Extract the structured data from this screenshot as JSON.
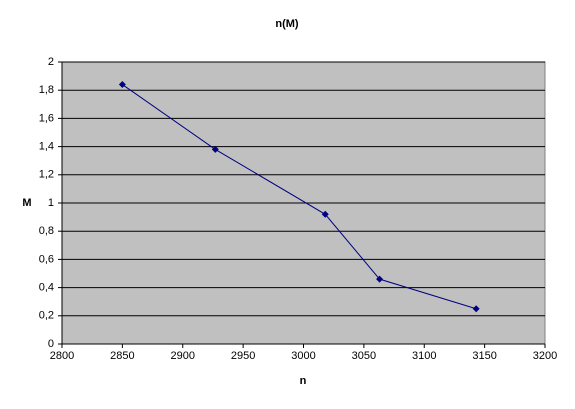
{
  "chart_data": {
    "type": "line",
    "title": "n(M)",
    "x_label": "n",
    "y_label": "M",
    "x": [
      2850,
      2927,
      3018,
      3063,
      3143
    ],
    "series": [
      {
        "color": "#000080",
        "values": [
          1.84,
          1.38,
          0.92,
          0.46,
          0.25
        ]
      }
    ],
    "xlim": [
      2800,
      3200
    ],
    "xticks": [
      2800,
      2850,
      2900,
      2950,
      3000,
      3050,
      3100,
      3150,
      3200
    ],
    "ylim": [
      0,
      2
    ],
    "yticks": [
      0,
      {
        "value": 0.2,
        "label": "0,2"
      },
      {
        "value": 0.4,
        "label": "0,4"
      },
      {
        "value": 0.6,
        "label": "0,6"
      },
      {
        "value": 0.8,
        "label": "0,8"
      },
      1,
      {
        "value": 1.2,
        "label": "1,2"
      },
      {
        "value": 1.4,
        "label": "1,4"
      },
      {
        "value": 1.6,
        "label": "1,6"
      },
      {
        "value": 1.8,
        "label": "1,8"
      },
      2
    ],
    "grid": true
  }
}
